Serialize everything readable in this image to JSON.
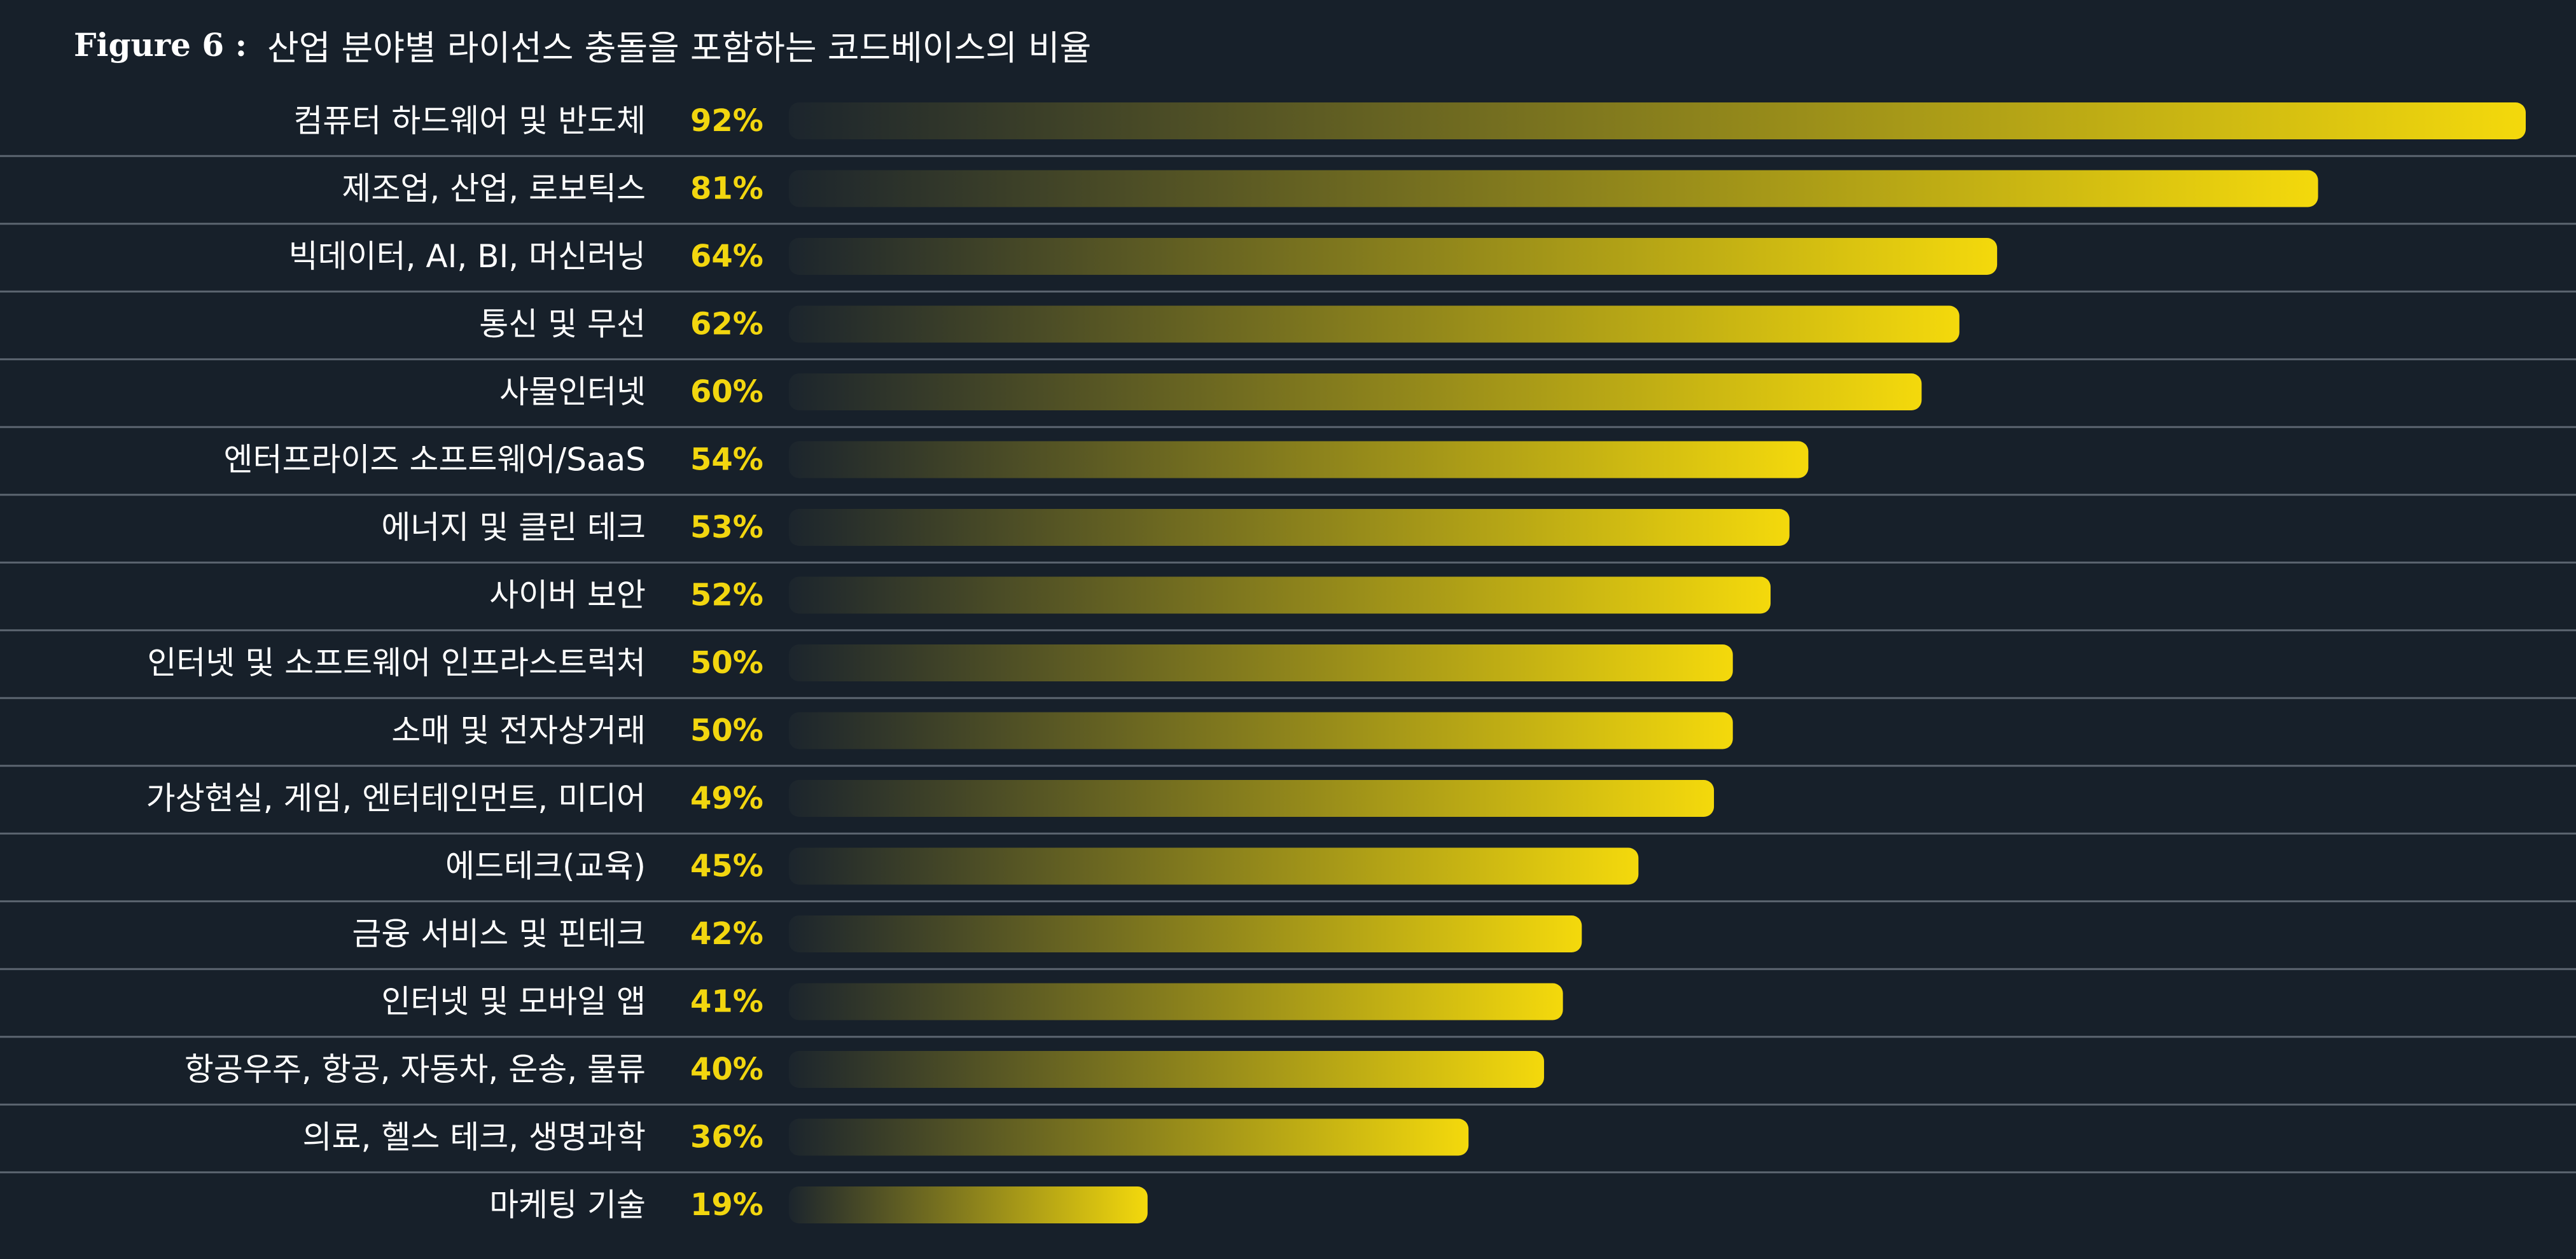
{
  "title": {
    "prefix": "Figure 6 :",
    "text": "산업 분야별 라이선스 충돌을 포함하는 코드베이스의 비율"
  },
  "colors": {
    "background": "#17202a",
    "bar_start": "#1c252d",
    "bar_end": "#f4d90c",
    "value_text": "#f2d60f",
    "label_text": "#ffffff",
    "row_line": "#5c6570"
  },
  "chart_data": {
    "type": "bar",
    "orientation": "horizontal",
    "title": "산업 분야별 라이선스 충돌을 포함하는 코드베이스의 비율",
    "xlim": [
      0,
      92
    ],
    "unit": "%",
    "grid": false,
    "categories": [
      "컴퓨터 하드웨어 및 반도체",
      "제조업, 산업, 로보틱스",
      "빅데이터, AI, BI, 머신러닝",
      "통신 및 무선",
      "사물인터넷",
      "엔터프라이즈 소프트웨어/SaaS",
      "에너지 및 클린 테크",
      "사이버 보안",
      "인터넷 및 소프트웨어 인프라스트럭처",
      "소매 및 전자상거래",
      "가상현실, 게임, 엔터테인먼트, 미디어",
      "에드테크(교육)",
      "금융 서비스 및 핀테크",
      "인터넷 및 모바일 앱",
      "항공우주, 항공, 자동차, 운송, 물류",
      "의료, 헬스 테크, 생명과학",
      "마케팅 기술"
    ],
    "values": [
      92,
      81,
      64,
      62,
      60,
      54,
      53,
      52,
      50,
      50,
      49,
      45,
      42,
      41,
      40,
      36,
      19
    ],
    "value_labels": [
      "92%",
      "81%",
      "64%",
      "62%",
      "60%",
      "54%",
      "53%",
      "52%",
      "50%",
      "50%",
      "49%",
      "45%",
      "42%",
      "41%",
      "40%",
      "36%",
      "19%"
    ]
  }
}
